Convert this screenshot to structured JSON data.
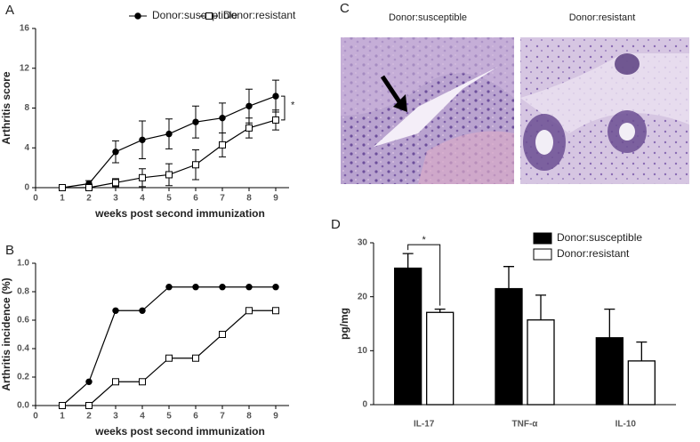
{
  "chart_data": [
    {
      "type": "line",
      "panel": "A",
      "xlabel": "weeks post second immunization",
      "ylabel": "Arthritis score",
      "x": [
        1,
        2,
        3,
        4,
        5,
        6,
        7,
        8,
        9
      ],
      "xlim": [
        0,
        9.5
      ],
      "xticks": [
        0,
        1,
        2,
        3,
        4,
        5,
        6,
        7,
        8,
        9
      ],
      "ylim": [
        0,
        16
      ],
      "yticks": [
        0,
        4,
        8,
        12,
        16
      ],
      "annotation": "*",
      "series": [
        {
          "name": "Donor:susceptible",
          "marker": "circle",
          "color": "#000000",
          "values": [
            0,
            0.4,
            3.6,
            4.8,
            5.4,
            6.6,
            7.0,
            8.2,
            9.2
          ],
          "errors": [
            0.2,
            0.3,
            1.1,
            1.9,
            1.5,
            1.6,
            1.5,
            1.7,
            1.6
          ]
        },
        {
          "name": "Donor:resistant",
          "marker": "square",
          "color": "#ffffff",
          "values": [
            0,
            0,
            0.5,
            1.0,
            1.3,
            2.3,
            4.3,
            6.0,
            6.8
          ],
          "errors": [
            0,
            0,
            0.4,
            0.9,
            1.1,
            1.5,
            1.2,
            1.0,
            1.0
          ]
        }
      ]
    },
    {
      "type": "line",
      "panel": "B",
      "xlabel": "weeks post second immunization",
      "ylabel": "Arthritis incidence (%)",
      "x": [
        1,
        2,
        3,
        4,
        5,
        6,
        7,
        8,
        9
      ],
      "xlim": [
        0,
        9.5
      ],
      "xticks": [
        0,
        1,
        2,
        3,
        4,
        5,
        6,
        7,
        8,
        9
      ],
      "ylim": [
        0,
        1
      ],
      "yticks": [
        {
          "value": 0,
          "label": "0.0"
        },
        0.2,
        0.4,
        0.6,
        0.8,
        {
          "value": 1,
          "label": "1.0"
        }
      ],
      "series": [
        {
          "marker": "circle",
          "color": "#000000",
          "values": [
            0,
            0.167,
            0.667,
            0.667,
            0.833,
            0.833,
            0.833,
            0.833,
            0.833
          ]
        },
        {
          "marker": "square",
          "color": "#ffffff",
          "values": [
            0,
            0,
            0.167,
            0.167,
            0.333,
            0.333,
            0.5,
            0.667,
            0.667
          ]
        }
      ]
    },
    {
      "type": "image",
      "panel": "C",
      "images": [
        {
          "title": "Donor:susceptible"
        },
        {
          "title": "Donor:resistant"
        }
      ]
    },
    {
      "type": "bar",
      "panel": "D",
      "ylabel": "pg/mg",
      "categories": [
        "IL-17",
        "TNF-α",
        "IL-10"
      ],
      "ylim": [
        0,
        30
      ],
      "yticks": [
        0,
        10,
        20,
        30
      ],
      "annotation": "*",
      "series": [
        {
          "name": "Donor:susceptible",
          "color": "#000000",
          "values": [
            25.3,
            21.5,
            12.4
          ],
          "errors": [
            2.7,
            4.1,
            5.3
          ]
        },
        {
          "name": "Donor:resistant",
          "color": "#ffffff",
          "values": [
            17.1,
            15.7,
            8.1
          ],
          "errors": [
            0.6,
            4.6,
            3.5
          ]
        }
      ]
    }
  ]
}
